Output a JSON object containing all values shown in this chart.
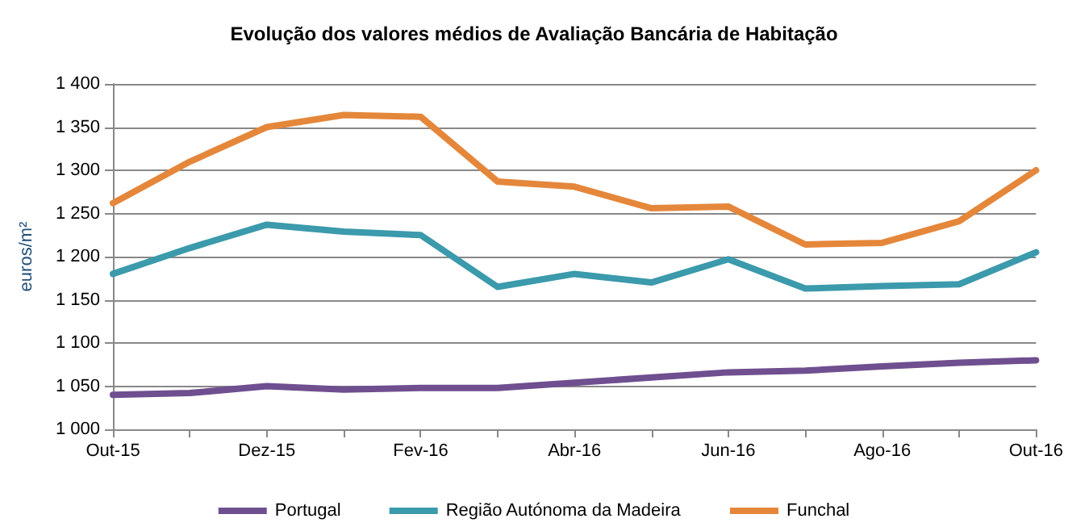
{
  "chart_data": {
    "type": "line",
    "title": "Evolução dos valores médios de Avaliação Bancária de Habitação",
    "ylabel": "euros/m²",
    "categories": [
      "Out-15",
      null,
      "Dez-15",
      null,
      "Fev-16",
      null,
      "Abr-16",
      null,
      "Jun-16",
      null,
      "Ago-16",
      null,
      "Out-16"
    ],
    "series": [
      {
        "name": "Portugal",
        "color": "#6f4f8f",
        "values": [
          1040,
          1042,
          1050,
          1046,
          1048,
          1048,
          1054,
          1060,
          1066,
          1068,
          1073,
          1077,
          1080
        ]
      },
      {
        "name": "Região Autónoma da Madeira",
        "color": "#3b9aab",
        "values": [
          1180,
          1210,
          1237,
          1229,
          1225,
          1165,
          1180,
          1170,
          1197,
          1163,
          1166,
          1168,
          1205
        ]
      },
      {
        "name": "Funchal",
        "color": "#e5873b",
        "values": [
          1262,
          1310,
          1350,
          1364,
          1362,
          1287,
          1281,
          1256,
          1258,
          1214,
          1216,
          1241,
          1300
        ]
      }
    ],
    "ylim": [
      1000,
      1400
    ],
    "yticks": [
      {
        "value": 1000,
        "label": "1 000"
      },
      {
        "value": 1050,
        "label": "1 050"
      },
      {
        "value": 1100,
        "label": "1 100"
      },
      {
        "value": 1150,
        "label": "1 150"
      },
      {
        "value": 1200,
        "label": "1 200"
      },
      {
        "value": 1250,
        "label": "1 250"
      },
      {
        "value": 1300,
        "label": "1 300"
      },
      {
        "value": 1350,
        "label": "1 350"
      },
      {
        "value": 1400,
        "label": "1 400"
      }
    ],
    "grid": "y",
    "legend": "bottom",
    "marker": "none",
    "line_style": "solid"
  }
}
